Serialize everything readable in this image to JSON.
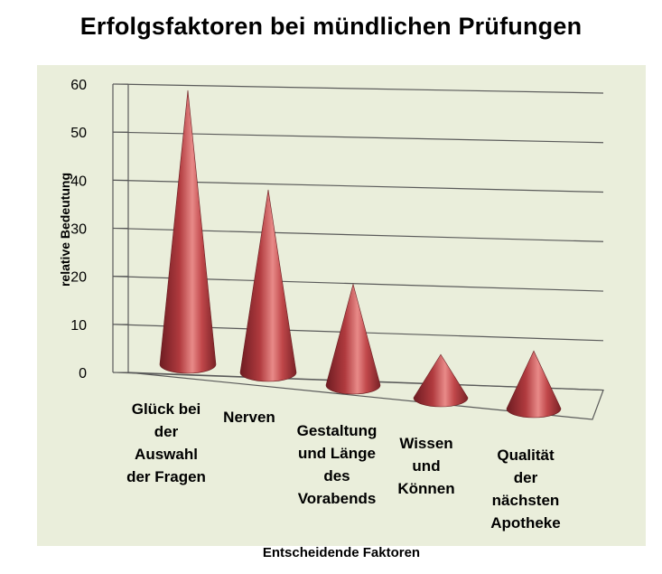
{
  "chart_data": {
    "type": "bar",
    "style": "3d-cone",
    "title": "Erfolgsfaktoren bei mündlichen Prüfungen",
    "xlabel": "Entscheidende Faktoren",
    "ylabel": "relative Bedeutung",
    "ylim": [
      0,
      60
    ],
    "yticks": [
      "0",
      "10",
      "20",
      "30",
      "40",
      "50",
      "60"
    ],
    "grid": true,
    "categories": [
      "Glück bei der Auswahl der Fragen",
      "Nerven",
      "Gestaltung und Länge des Vorabends",
      "Wissen und Können",
      "Qualität der nächsten Apotheke"
    ],
    "category_lines": [
      [
        "Glück bei",
        "der",
        "Auswahl",
        "der Fragen"
      ],
      [
        "Nerven"
      ],
      [
        "Gestaltung",
        "und Länge",
        "des",
        "Vorabends"
      ],
      [
        "Wissen",
        "und",
        "Können"
      ],
      [
        "Qualität",
        "der",
        "nächsten",
        "Apotheke"
      ]
    ],
    "values": [
      57,
      38,
      21,
      9,
      12
    ],
    "colors": {
      "cone": "#b03a3e",
      "background": "#eaeedb",
      "grid": "#5a5a5a"
    }
  }
}
